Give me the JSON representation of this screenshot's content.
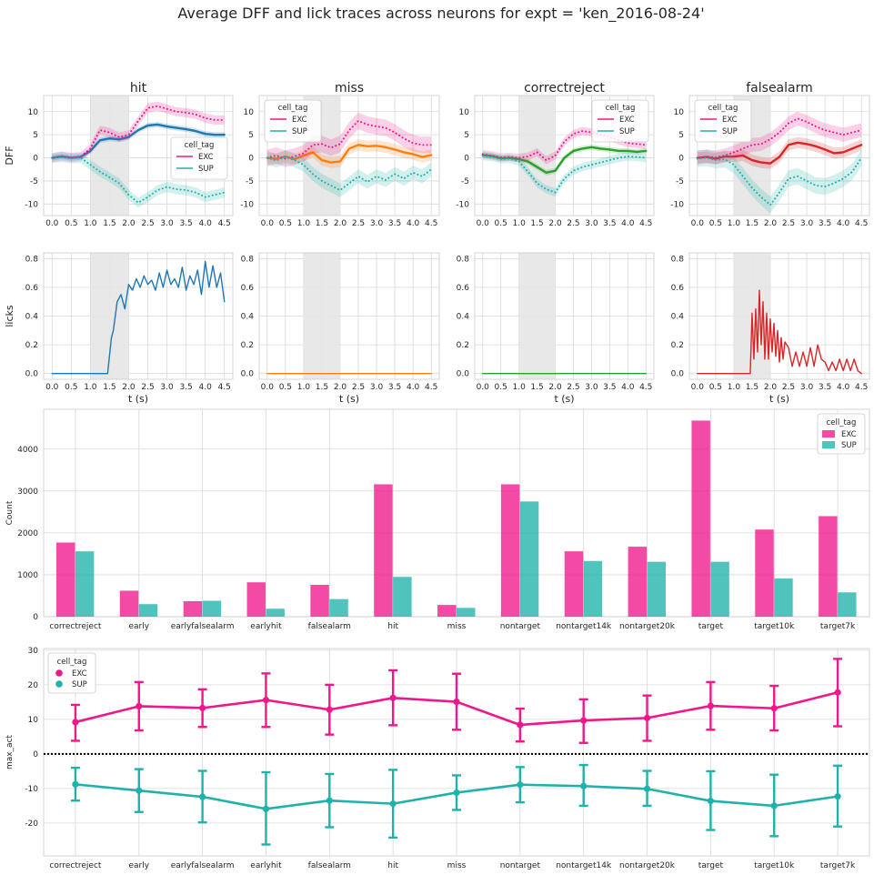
{
  "figure": {
    "title": "Average DFF and lick traces across neurons for expt = 'ken_2016-08-24'"
  },
  "colors": {
    "EXC": "#f0178c",
    "SUP": "#20b2aa",
    "hit": "#1f77b4",
    "miss": "#ff7f0e",
    "correctreject": "#2ca02c",
    "falsealarm": "#d62728",
    "stim_shade": "#e6e6e6",
    "grid": "#d9d9d9"
  },
  "chart_data": [
    {
      "type": "line",
      "panel": "dff-hit",
      "title": "hit",
      "ylabel": "DFF",
      "xlabel": "",
      "xlim": [
        -0.22,
        4.72
      ],
      "ylim": [
        -12.5,
        13.5
      ],
      "xticks": [
        "0.0",
        "0.5",
        "1.0",
        "1.5",
        "2.0",
        "2.5",
        "3.0",
        "3.5",
        "4.0",
        "4.5"
      ],
      "yticks": [
        "-10",
        "-5",
        "0",
        "5",
        "10"
      ],
      "stim_window": [
        1.0,
        2.0
      ],
      "legend": {
        "title": "cell_tag",
        "entries": [
          "EXC",
          "SUP"
        ],
        "placement": "center-right"
      },
      "x": [
        0,
        0.25,
        0.5,
        0.75,
        1.0,
        1.25,
        1.5,
        1.75,
        2.0,
        2.25,
        2.5,
        2.75,
        3.0,
        3.25,
        3.5,
        3.75,
        4.0,
        4.25,
        4.5
      ],
      "series": [
        {
          "name": "mean",
          "color_key": "hit",
          "style": "solid",
          "values": [
            0,
            0.3,
            0,
            0.2,
            1.5,
            3.8,
            4.2,
            4.0,
            4.5,
            6.0,
            7.0,
            7.2,
            6.8,
            6.5,
            6.2,
            5.8,
            5.2,
            5.0,
            5.0
          ],
          "ci": 0.6
        },
        {
          "name": "EXC",
          "color_key": "EXC",
          "style": "dotted",
          "values": [
            0,
            0.4,
            0.1,
            0.3,
            2.0,
            6.0,
            5.5,
            4.5,
            5.0,
            8.0,
            10.8,
            11.2,
            10.6,
            10.0,
            9.8,
            9.4,
            8.6,
            8.2,
            8.2
          ],
          "ci": 1.0
        },
        {
          "name": "SUP",
          "color_key": "SUP",
          "style": "dotted",
          "values": [
            0,
            0.2,
            -0.1,
            0,
            -1.5,
            -3.0,
            -4.2,
            -5.5,
            -8.0,
            -9.7,
            -8.5,
            -7.0,
            -6.3,
            -6.8,
            -7.0,
            -7.5,
            -8.5,
            -8.0,
            -7.5
          ],
          "ci": 1.1
        }
      ]
    },
    {
      "type": "line",
      "panel": "dff-miss",
      "title": "miss",
      "ylabel": "",
      "xlabel": "",
      "xlim": [
        -0.22,
        4.72
      ],
      "ylim": [
        -12.5,
        13.5
      ],
      "xticks": [
        "0.0",
        "0.5",
        "1.0",
        "1.5",
        "2.0",
        "2.5",
        "3.0",
        "3.5",
        "4.0",
        "4.5"
      ],
      "yticks": [
        "-10",
        "-5",
        "0",
        "5",
        "10"
      ],
      "stim_window": [
        1.0,
        2.0
      ],
      "legend": {
        "title": "cell_tag",
        "entries": [
          "EXC",
          "SUP"
        ],
        "placement": "upper-left"
      },
      "x": [
        0,
        0.25,
        0.5,
        0.75,
        1.0,
        1.25,
        1.5,
        1.75,
        2.0,
        2.25,
        2.5,
        2.75,
        3.0,
        3.25,
        3.5,
        3.75,
        4.0,
        4.25,
        4.5
      ],
      "series": [
        {
          "name": "mean",
          "color_key": "miss",
          "style": "solid",
          "values": [
            0,
            -0.2,
            0.3,
            -0.3,
            0.5,
            1.2,
            -0.5,
            -1.0,
            -0.8,
            2.0,
            2.8,
            2.5,
            2.6,
            2.3,
            1.8,
            1.2,
            0.8,
            0.2,
            0.6
          ],
          "ci": 1.2
        },
        {
          "name": "EXC",
          "color_key": "EXC",
          "style": "dotted",
          "values": [
            0,
            0.5,
            -0.2,
            0.3,
            1.0,
            2.8,
            3.0,
            2.2,
            3.0,
            6.0,
            8.0,
            7.2,
            6.8,
            6.5,
            5.5,
            4.2,
            3.2,
            2.8,
            2.8
          ],
          "ci": 1.8
        },
        {
          "name": "SUP",
          "color_key": "SUP",
          "style": "dotted",
          "values": [
            0,
            -0.6,
            0.2,
            -0.5,
            -1.5,
            -3.5,
            -5.0,
            -6.0,
            -7.0,
            -5.5,
            -4.0,
            -5.2,
            -4.0,
            -4.8,
            -3.5,
            -4.5,
            -3.2,
            -4.0,
            -2.5
          ],
          "ci": 1.5
        }
      ]
    },
    {
      "type": "line",
      "panel": "dff-correctreject",
      "title": "correctreject",
      "ylabel": "",
      "xlabel": "",
      "xlim": [
        -0.22,
        4.72
      ],
      "ylim": [
        -12.5,
        13.5
      ],
      "xticks": [
        "0.0",
        "0.5",
        "1.0",
        "1.5",
        "2.0",
        "2.5",
        "3.0",
        "3.5",
        "4.0",
        "4.5"
      ],
      "yticks": [
        "-10",
        "-5",
        "0",
        "5",
        "10"
      ],
      "stim_window": [
        1.0,
        2.0
      ],
      "legend": {
        "title": "cell_tag",
        "entries": [
          "EXC",
          "SUP"
        ],
        "placement": "upper-right"
      },
      "x": [
        0,
        0.25,
        0.5,
        0.75,
        1.0,
        1.25,
        1.5,
        1.75,
        2.0,
        2.25,
        2.5,
        2.75,
        3.0,
        3.25,
        3.5,
        3.75,
        4.0,
        4.25,
        4.5
      ],
      "series": [
        {
          "name": "mean",
          "color_key": "correctreject",
          "style": "solid",
          "values": [
            0.6,
            0.4,
            -0.1,
            0,
            -0.3,
            -0.8,
            -2.0,
            -3.2,
            -2.8,
            0,
            1.5,
            2.0,
            2.3,
            2.0,
            1.8,
            1.5,
            1.5,
            1.3,
            1.5
          ],
          "ci": 0.6
        },
        {
          "name": "EXC",
          "color_key": "EXC",
          "style": "dotted",
          "values": [
            0.8,
            0.5,
            0.1,
            0.2,
            0,
            0.3,
            1.2,
            -0.5,
            0.5,
            3.5,
            5.2,
            5.8,
            5.5,
            5.0,
            4.5,
            3.8,
            3.2,
            3.0,
            2.8
          ],
          "ci": 0.9
        },
        {
          "name": "SUP",
          "color_key": "SUP",
          "style": "dotted",
          "values": [
            0.4,
            0.2,
            -0.3,
            -0.2,
            -0.8,
            -3.0,
            -5.5,
            -6.8,
            -7.5,
            -4.5,
            -2.8,
            -2.0,
            -1.5,
            -1.0,
            -0.5,
            0,
            0.3,
            0.2,
            0
          ],
          "ci": 0.9
        }
      ]
    },
    {
      "type": "line",
      "panel": "dff-falsealarm",
      "title": "falsealarm",
      "ylabel": "",
      "xlabel": "",
      "xlim": [
        -0.22,
        4.72
      ],
      "ylim": [
        -12.5,
        13.5
      ],
      "xticks": [
        "0.0",
        "0.5",
        "1.0",
        "1.5",
        "2.0",
        "2.5",
        "3.0",
        "3.5",
        "4.0",
        "4.5"
      ],
      "yticks": [
        "-10",
        "-5",
        "0",
        "5",
        "10"
      ],
      "stim_window": [
        1.0,
        2.0
      ],
      "legend": {
        "title": "cell_tag",
        "entries": [
          "EXC",
          "SUP"
        ],
        "placement": "upper-left"
      },
      "x": [
        0,
        0.25,
        0.5,
        0.75,
        1.0,
        1.25,
        1.5,
        1.75,
        2.0,
        2.25,
        2.5,
        2.75,
        3.0,
        3.25,
        3.5,
        3.75,
        4.0,
        4.25,
        4.5
      ],
      "series": [
        {
          "name": "mean",
          "color_key": "falsealarm",
          "style": "solid",
          "values": [
            0,
            0.2,
            -0.2,
            0.3,
            0.3,
            0.5,
            -0.5,
            -1.0,
            -1.2,
            0.2,
            2.8,
            3.3,
            3.0,
            2.5,
            1.8,
            1.0,
            1.2,
            2.0,
            2.8
          ],
          "ci": 1.2
        },
        {
          "name": "EXC",
          "color_key": "EXC",
          "style": "dotted",
          "values": [
            0,
            0.3,
            0.1,
            0.5,
            1.2,
            2.0,
            2.8,
            3.0,
            4.0,
            5.5,
            7.5,
            8.5,
            7.8,
            6.8,
            6.0,
            5.5,
            5.0,
            5.5,
            6.0
          ],
          "ci": 1.5
        },
        {
          "name": "SUP",
          "color_key": "SUP",
          "style": "dotted",
          "values": [
            -0.2,
            0,
            -0.5,
            -0.3,
            -1.5,
            -4.0,
            -6.5,
            -8.5,
            -10.2,
            -7.5,
            -4.5,
            -4.0,
            -5.0,
            -6.0,
            -6.2,
            -5.5,
            -4.5,
            -3.0,
            0
          ],
          "ci": 1.8
        }
      ]
    },
    {
      "type": "line",
      "panel": "licks-hit",
      "ylabel": "licks",
      "xlabel": "t (s)",
      "xlim": [
        -0.22,
        4.72
      ],
      "ylim": [
        -0.04,
        0.84
      ],
      "xticks": [
        "0.0",
        "0.5",
        "1.0",
        "1.5",
        "2.0",
        "2.5",
        "3.0",
        "3.5",
        "4.0",
        "4.5"
      ],
      "yticks": [
        "0.0",
        "0.2",
        "0.4",
        "0.6",
        "0.8"
      ],
      "stim_window": [
        1.0,
        2.0
      ],
      "x": [
        0,
        1.45,
        1.55,
        1.6,
        1.7,
        1.8,
        1.9,
        2.0,
        2.1,
        2.2,
        2.3,
        2.4,
        2.5,
        2.6,
        2.7,
        2.8,
        2.9,
        3.0,
        3.1,
        3.2,
        3.3,
        3.4,
        3.5,
        3.6,
        3.7,
        3.8,
        3.9,
        4.0,
        4.1,
        4.2,
        4.3,
        4.4,
        4.5
      ],
      "series": [
        {
          "name": "licks",
          "color_key": "hit",
          "style": "solid",
          "values": [
            0,
            0,
            0.25,
            0.3,
            0.5,
            0.55,
            0.45,
            0.62,
            0.58,
            0.66,
            0.6,
            0.68,
            0.62,
            0.65,
            0.58,
            0.7,
            0.6,
            0.72,
            0.62,
            0.66,
            0.6,
            0.74,
            0.58,
            0.68,
            0.62,
            0.72,
            0.55,
            0.78,
            0.6,
            0.75,
            0.6,
            0.7,
            0.5
          ]
        }
      ]
    },
    {
      "type": "line",
      "panel": "licks-miss",
      "ylabel": "",
      "xlabel": "t (s)",
      "xlim": [
        -0.22,
        4.72
      ],
      "ylim": [
        -0.04,
        0.84
      ],
      "xticks": [
        "0.0",
        "0.5",
        "1.0",
        "1.5",
        "2.0",
        "2.5",
        "3.0",
        "3.5",
        "4.0",
        "4.5"
      ],
      "yticks": [
        "0.0",
        "0.2",
        "0.4",
        "0.6",
        "0.8"
      ],
      "stim_window": [
        1.0,
        2.0
      ],
      "x": [
        0,
        4.5
      ],
      "series": [
        {
          "name": "licks",
          "color_key": "miss",
          "style": "solid",
          "values": [
            0,
            0
          ]
        }
      ]
    },
    {
      "type": "line",
      "panel": "licks-correctreject",
      "ylabel": "",
      "xlabel": "t (s)",
      "xlim": [
        -0.22,
        4.72
      ],
      "ylim": [
        -0.04,
        0.84
      ],
      "xticks": [
        "0.0",
        "0.5",
        "1.0",
        "1.5",
        "2.0",
        "2.5",
        "3.0",
        "3.5",
        "4.0",
        "4.5"
      ],
      "yticks": [
        "0.0",
        "0.2",
        "0.4",
        "0.6",
        "0.8"
      ],
      "stim_window": [
        1.0,
        2.0
      ],
      "x": [
        0,
        4.5
      ],
      "series": [
        {
          "name": "licks",
          "color_key": "correctreject",
          "style": "solid",
          "values": [
            0,
            0
          ]
        }
      ]
    },
    {
      "type": "line",
      "panel": "licks-falsealarm",
      "ylabel": "",
      "xlabel": "t (s)",
      "xlim": [
        -0.22,
        4.72
      ],
      "ylim": [
        -0.04,
        0.84
      ],
      "xticks": [
        "0.0",
        "0.5",
        "1.0",
        "1.5",
        "2.0",
        "2.5",
        "3.0",
        "3.5",
        "4.0",
        "4.5"
      ],
      "yticks": [
        "0.0",
        "0.2",
        "0.4",
        "0.6",
        "0.8"
      ],
      "stim_window": [
        1.0,
        2.0
      ],
      "x": [
        0,
        1.45,
        1.5,
        1.55,
        1.6,
        1.65,
        1.7,
        1.75,
        1.8,
        1.85,
        1.9,
        1.95,
        2.0,
        2.05,
        2.1,
        2.15,
        2.2,
        2.25,
        2.3,
        2.35,
        2.4,
        2.5,
        2.6,
        2.7,
        2.8,
        2.9,
        3.0,
        3.1,
        3.2,
        3.3,
        3.4,
        3.5,
        3.6,
        3.7,
        3.8,
        3.9,
        4.0,
        4.1,
        4.2,
        4.3,
        4.4,
        4.5
      ],
      "series": [
        {
          "name": "licks",
          "color_key": "falsealarm",
          "style": "solid",
          "values": [
            0,
            0,
            0.42,
            0.1,
            0.45,
            0.15,
            0.58,
            0.2,
            0.5,
            0.1,
            0.42,
            0.1,
            0.38,
            0.15,
            0.35,
            0.12,
            0.3,
            0.08,
            0.25,
            0.1,
            0.22,
            0.18,
            0.05,
            0.15,
            0.05,
            0.15,
            0.05,
            0.18,
            0.05,
            0.2,
            0.1,
            0.08,
            0.02,
            0.08,
            0.02,
            0.1,
            0.02,
            0.1,
            0.02,
            0.1,
            0.02,
            0
          ]
        }
      ]
    },
    {
      "type": "bar",
      "panel": "count-bars",
      "ylabel": "Count",
      "xlabel": "",
      "ylim": [
        0,
        4950
      ],
      "yticks": [
        "0",
        "1000",
        "2000",
        "3000",
        "4000"
      ],
      "categories": [
        "correctreject",
        "early",
        "earlyfalsealarm",
        "earlyhit",
        "falsealarm",
        "hit",
        "miss",
        "nontarget",
        "nontarget14k",
        "nontarget20k",
        "target",
        "target10k",
        "target7k"
      ],
      "legend": {
        "title": "cell_tag",
        "entries": [
          "EXC",
          "SUP"
        ],
        "placement": "upper-right"
      },
      "series": [
        {
          "name": "EXC",
          "color_key": "EXC",
          "values": [
            1770,
            620,
            370,
            820,
            760,
            3160,
            280,
            3160,
            1560,
            1670,
            4680,
            2080,
            2400
          ]
        },
        {
          "name": "SUP",
          "color_key": "SUP",
          "values": [
            1560,
            300,
            380,
            190,
            420,
            950,
            210,
            2750,
            1330,
            1310,
            1310,
            910,
            580
          ]
        }
      ]
    },
    {
      "type": "line",
      "panel": "max-act-points",
      "ylabel": "max_act",
      "xlabel": "",
      "ylim": [
        -29.5,
        30.5
      ],
      "yticks": [
        "-20",
        "-10",
        "0",
        "10",
        "20",
        "30"
      ],
      "categories": [
        "correctreject",
        "early",
        "earlyfalsealarm",
        "earlyhit",
        "falsealarm",
        "hit",
        "miss",
        "nontarget",
        "nontarget14k",
        "nontarget20k",
        "target",
        "target10k",
        "target7k"
      ],
      "legend": {
        "title": "cell_tag",
        "entries": [
          "EXC",
          "SUP"
        ],
        "placement": "upper-left"
      },
      "zero_line": true,
      "series": [
        {
          "name": "EXC",
          "color_key": "EXC",
          "values": [
            9.2,
            13.8,
            13.3,
            15.6,
            12.8,
            16.2,
            15.1,
            8.4,
            9.7,
            10.4,
            13.9,
            13.2,
            17.8
          ],
          "lower": [
            3.8,
            6.8,
            7.8,
            7.8,
            5.6,
            8.3,
            7.0,
            3.6,
            3.2,
            3.8,
            7.0,
            6.8,
            8.0
          ],
          "upper": [
            14.2,
            20.8,
            18.7,
            23.3,
            20.0,
            24.2,
            23.2,
            13.1,
            15.8,
            16.9,
            20.8,
            19.7,
            27.5
          ]
        },
        {
          "name": "SUP",
          "color_key": "SUP",
          "values": [
            -8.8,
            -10.6,
            -12.4,
            -15.9,
            -13.5,
            -14.4,
            -11.2,
            -8.9,
            -9.3,
            -10.1,
            -13.6,
            -15.0,
            -12.3
          ],
          "lower": [
            -13.5,
            -16.8,
            -19.8,
            -26.2,
            -21.2,
            -24.2,
            -16.2,
            -14.0,
            -15.0,
            -15.0,
            -22.0,
            -23.8,
            -21.0
          ],
          "upper": [
            -4.0,
            -4.4,
            -4.9,
            -5.3,
            -5.8,
            -4.6,
            -6.2,
            -3.8,
            -3.2,
            -4.9,
            -5.0,
            -6.0,
            -3.4
          ]
        }
      ]
    }
  ]
}
